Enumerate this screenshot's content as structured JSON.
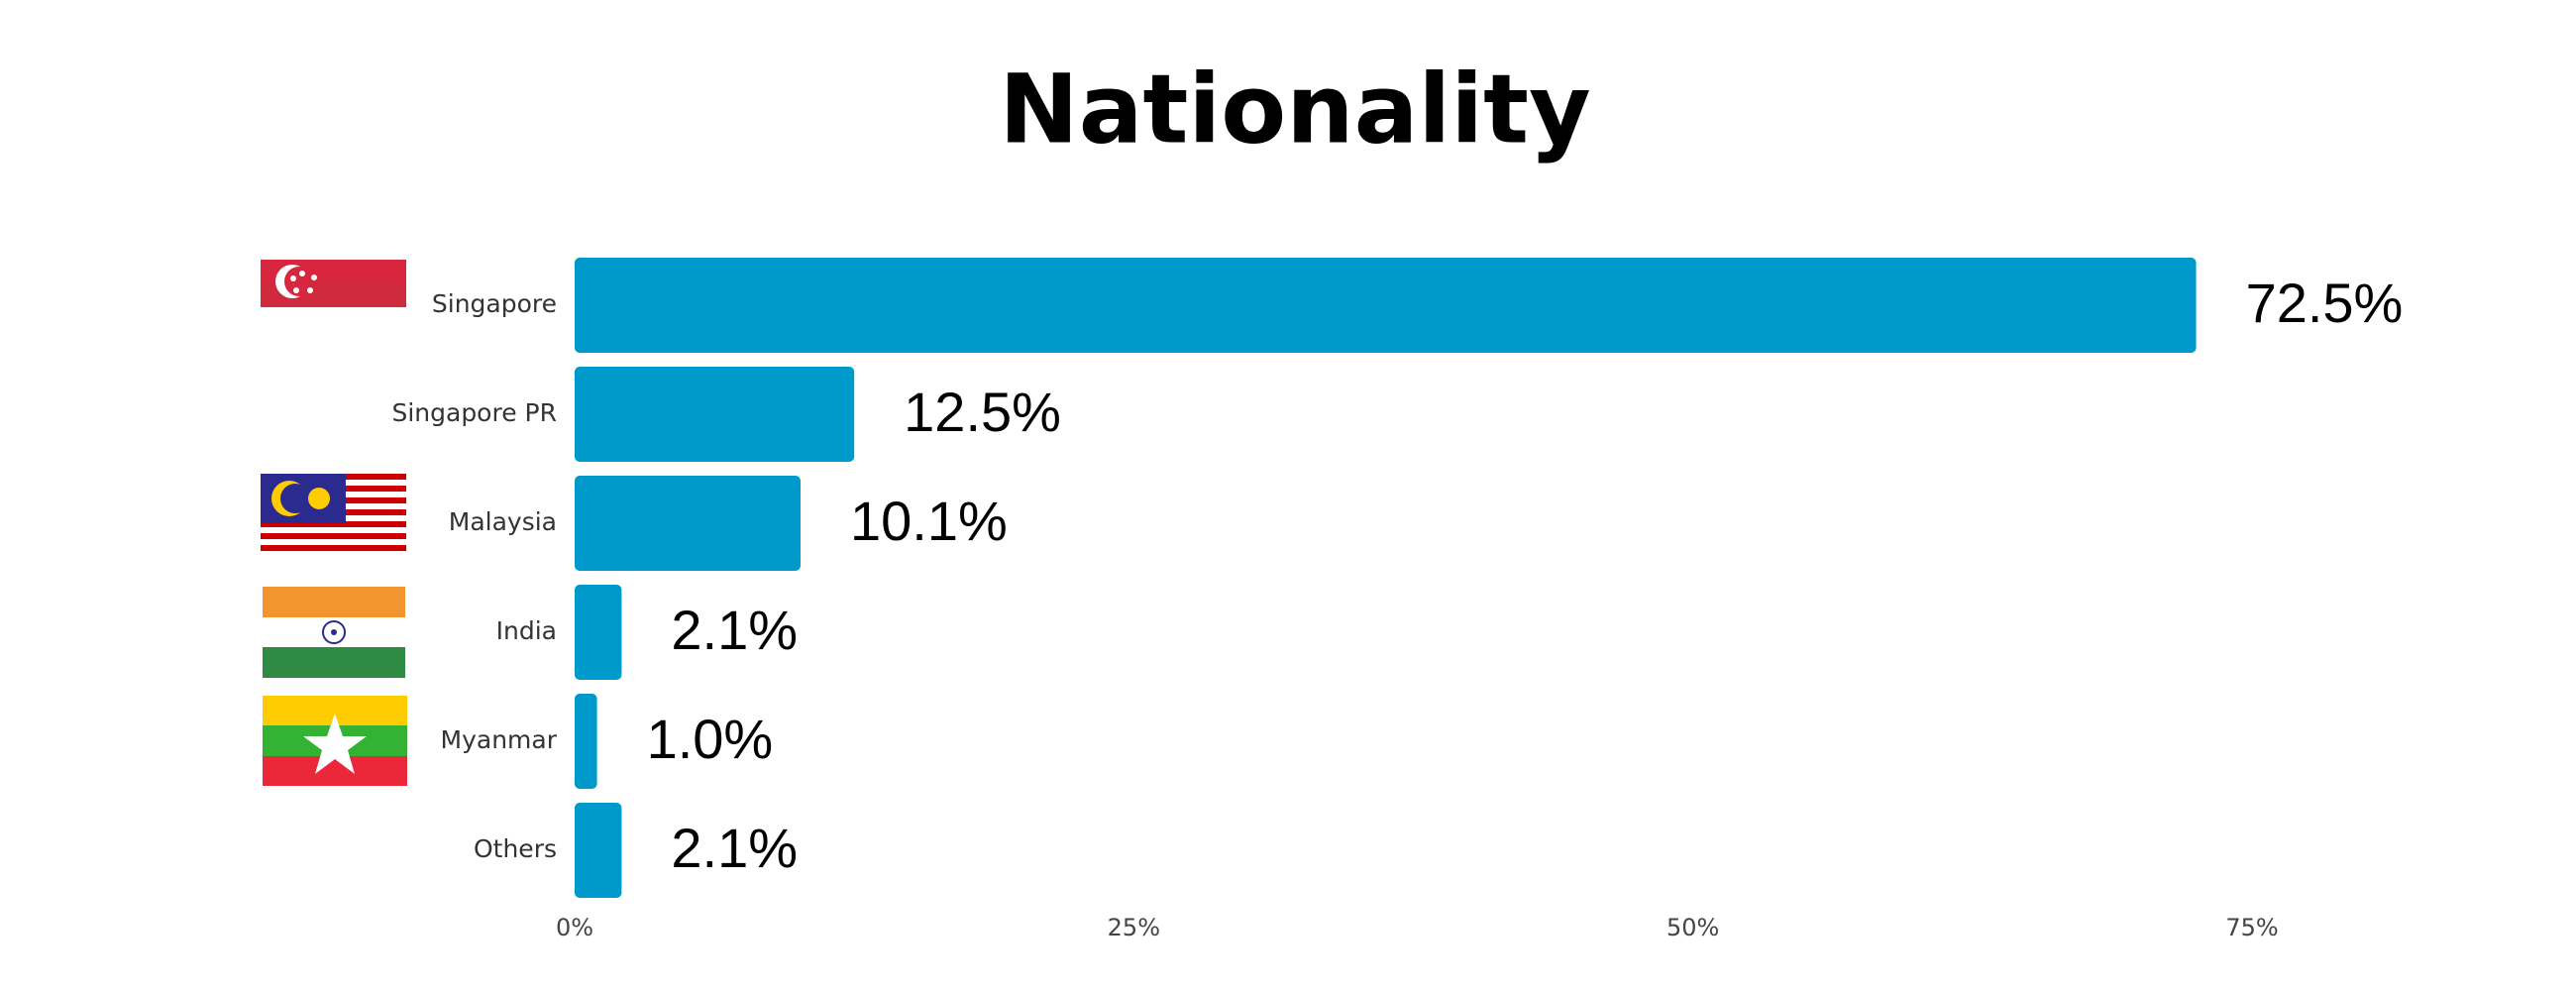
{
  "chart_data": {
    "type": "bar",
    "title": "Nationality",
    "categories": [
      "Singapore",
      "Singapore PR",
      "Malaysia",
      "India",
      "Myanmar",
      "Others"
    ],
    "values": [
      72.5,
      12.5,
      10.1,
      2.1,
      1.0,
      2.1
    ],
    "value_labels": [
      "72.5%",
      "12.5%",
      "10.1%",
      "2.1%",
      "1.0%",
      "2.1%"
    ],
    "color": "#0099cc",
    "xlim": [
      0,
      75
    ],
    "xticks": [
      {
        "value": 0,
        "label": "0%"
      },
      {
        "value": 25,
        "label": "25%"
      },
      {
        "value": 50,
        "label": "50%"
      },
      {
        "value": 75,
        "label": "75%"
      }
    ]
  }
}
